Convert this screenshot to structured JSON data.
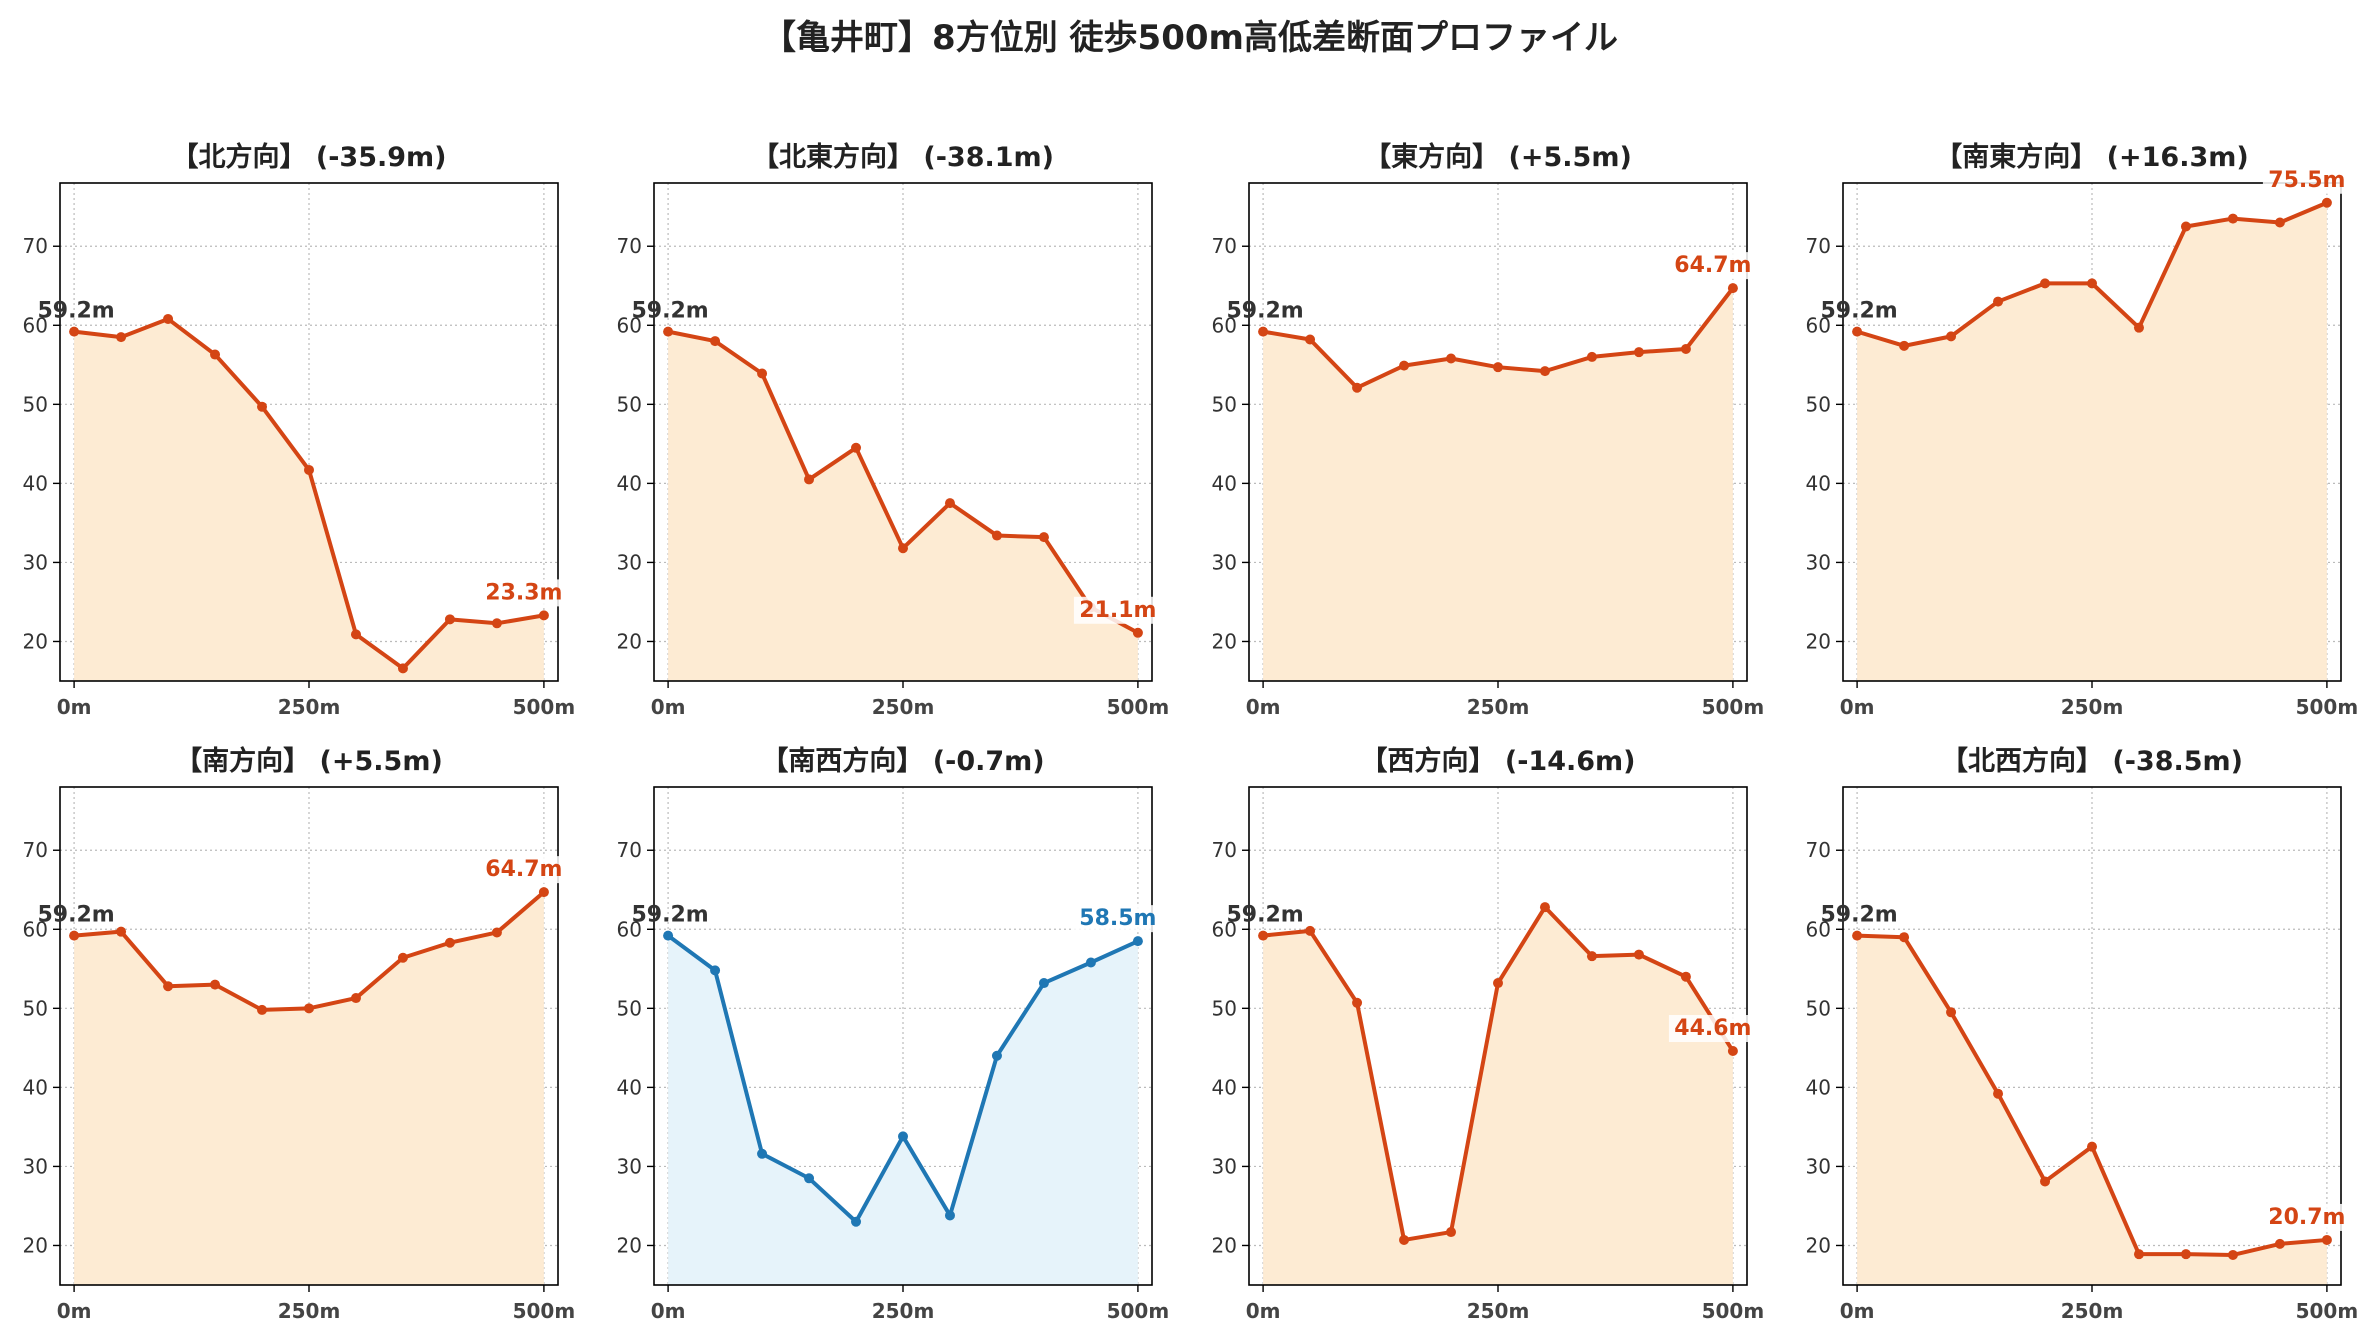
{
  "title": "【亀井町】8方位別 徒歩500m高低差断面プロファイル",
  "colors": {
    "descent_line": "#d44514",
    "descent_fill": "#fdebd3",
    "flat_line": "#1f77b4",
    "flat_fill": "#e6f3fa",
    "start_label": "#333333",
    "grid": "#bbbbbb"
  },
  "chart_data": [
    {
      "type": "line",
      "title": "【北方向】 (-35.9m)",
      "x": [
        0,
        50,
        100,
        150,
        200,
        250,
        300,
        350,
        400,
        450,
        500
      ],
      "values": [
        59.2,
        58.5,
        60.8,
        56.3,
        49.7,
        41.7,
        20.9,
        16.6,
        22.8,
        22.3,
        23.3
      ],
      "start_label": "59.2m",
      "end_label": "23.3m",
      "style": "warm",
      "xticks": [
        "0m",
        "250m",
        "500m"
      ],
      "xtick_values": [
        0,
        250,
        500
      ],
      "yticks": [
        20,
        30,
        40,
        50,
        60,
        70
      ],
      "ylim": [
        15,
        78
      ],
      "xlim": [
        -15,
        515
      ],
      "grid": true
    },
    {
      "type": "line",
      "title": "【北東方向】 (-38.1m)",
      "x": [
        0,
        50,
        100,
        150,
        200,
        250,
        300,
        350,
        400,
        450,
        500
      ],
      "values": [
        59.2,
        58.0,
        53.9,
        40.5,
        44.5,
        31.8,
        37.5,
        33.4,
        33.2,
        24.3,
        21.1
      ],
      "start_label": "59.2m",
      "end_label": "21.1m",
      "style": "warm",
      "xticks": [
        "0m",
        "250m",
        "500m"
      ],
      "xtick_values": [
        0,
        250,
        500
      ],
      "yticks": [
        20,
        30,
        40,
        50,
        60,
        70
      ],
      "ylim": [
        15,
        78
      ],
      "xlim": [
        -15,
        515
      ],
      "grid": true
    },
    {
      "type": "line",
      "title": "【東方向】 (+5.5m)",
      "x": [
        0,
        50,
        100,
        150,
        200,
        250,
        300,
        350,
        400,
        450,
        500
      ],
      "values": [
        59.2,
        58.2,
        52.1,
        54.9,
        55.8,
        54.7,
        54.2,
        56.0,
        56.6,
        57.0,
        64.7
      ],
      "start_label": "59.2m",
      "end_label": "64.7m",
      "style": "warm",
      "xticks": [
        "0m",
        "250m",
        "500m"
      ],
      "xtick_values": [
        0,
        250,
        500
      ],
      "yticks": [
        20,
        30,
        40,
        50,
        60,
        70
      ],
      "ylim": [
        15,
        78
      ],
      "xlim": [
        -15,
        515
      ],
      "grid": true
    },
    {
      "type": "line",
      "title": "【南東方向】 (+16.3m)",
      "x": [
        0,
        50,
        100,
        150,
        200,
        250,
        300,
        350,
        400,
        450,
        500
      ],
      "values": [
        59.2,
        57.4,
        58.6,
        63.0,
        65.3,
        65.3,
        59.7,
        72.5,
        73.5,
        73.0,
        75.5
      ],
      "start_label": "59.2m",
      "end_label": "75.5m",
      "style": "warm",
      "xticks": [
        "0m",
        "250m",
        "500m"
      ],
      "xtick_values": [
        0,
        250,
        500
      ],
      "yticks": [
        20,
        30,
        40,
        50,
        60,
        70
      ],
      "ylim": [
        15,
        78
      ],
      "xlim": [
        -15,
        515
      ],
      "grid": true
    },
    {
      "type": "line",
      "title": "【南方向】 (+5.5m)",
      "x": [
        0,
        50,
        100,
        150,
        200,
        250,
        300,
        350,
        400,
        450,
        500
      ],
      "values": [
        59.2,
        59.7,
        52.8,
        53.0,
        49.8,
        50.0,
        51.3,
        56.4,
        58.3,
        59.6,
        64.7
      ],
      "start_label": "59.2m",
      "end_label": "64.7m",
      "style": "warm",
      "xticks": [
        "0m",
        "250m",
        "500m"
      ],
      "xtick_values": [
        0,
        250,
        500
      ],
      "yticks": [
        20,
        30,
        40,
        50,
        60,
        70
      ],
      "ylim": [
        15,
        78
      ],
      "xlim": [
        -15,
        515
      ],
      "grid": true
    },
    {
      "type": "line",
      "title": "【南西方向】 (-0.7m)",
      "x": [
        0,
        50,
        100,
        150,
        200,
        250,
        300,
        350,
        400,
        450,
        500
      ],
      "values": [
        59.2,
        54.8,
        31.6,
        28.5,
        23.0,
        33.8,
        23.8,
        44.0,
        53.2,
        55.8,
        58.5
      ],
      "start_label": "59.2m",
      "end_label": "58.5m",
      "style": "cool",
      "xticks": [
        "0m",
        "250m",
        "500m"
      ],
      "xtick_values": [
        0,
        250,
        500
      ],
      "yticks": [
        20,
        30,
        40,
        50,
        60,
        70
      ],
      "ylim": [
        15,
        78
      ],
      "xlim": [
        -15,
        515
      ],
      "grid": true
    },
    {
      "type": "line",
      "title": "【西方向】 (-14.6m)",
      "x": [
        0,
        50,
        100,
        150,
        200,
        250,
        300,
        350,
        400,
        450,
        500
      ],
      "values": [
        59.2,
        59.8,
        50.7,
        20.7,
        21.7,
        53.2,
        62.8,
        56.6,
        56.8,
        54.0,
        44.6
      ],
      "start_label": "59.2m",
      "end_label": "44.6m",
      "style": "warm",
      "xticks": [
        "0m",
        "250m",
        "500m"
      ],
      "xtick_values": [
        0,
        250,
        500
      ],
      "yticks": [
        20,
        30,
        40,
        50,
        60,
        70
      ],
      "ylim": [
        15,
        78
      ],
      "xlim": [
        -15,
        515
      ],
      "grid": true
    },
    {
      "type": "line",
      "title": "【北西方向】 (-38.5m)",
      "x": [
        0,
        50,
        100,
        150,
        200,
        250,
        300,
        350,
        400,
        450,
        500
      ],
      "values": [
        59.2,
        59.0,
        49.5,
        39.2,
        28.1,
        32.5,
        18.9,
        18.9,
        18.8,
        20.2,
        20.7
      ],
      "start_label": "59.2m",
      "end_label": "20.7m",
      "style": "warm",
      "xticks": [
        "0m",
        "250m",
        "500m"
      ],
      "xtick_values": [
        0,
        250,
        500
      ],
      "yticks": [
        20,
        30,
        40,
        50,
        60,
        70
      ],
      "ylim": [
        15,
        78
      ],
      "xlim": [
        -15,
        515
      ],
      "grid": true
    }
  ]
}
